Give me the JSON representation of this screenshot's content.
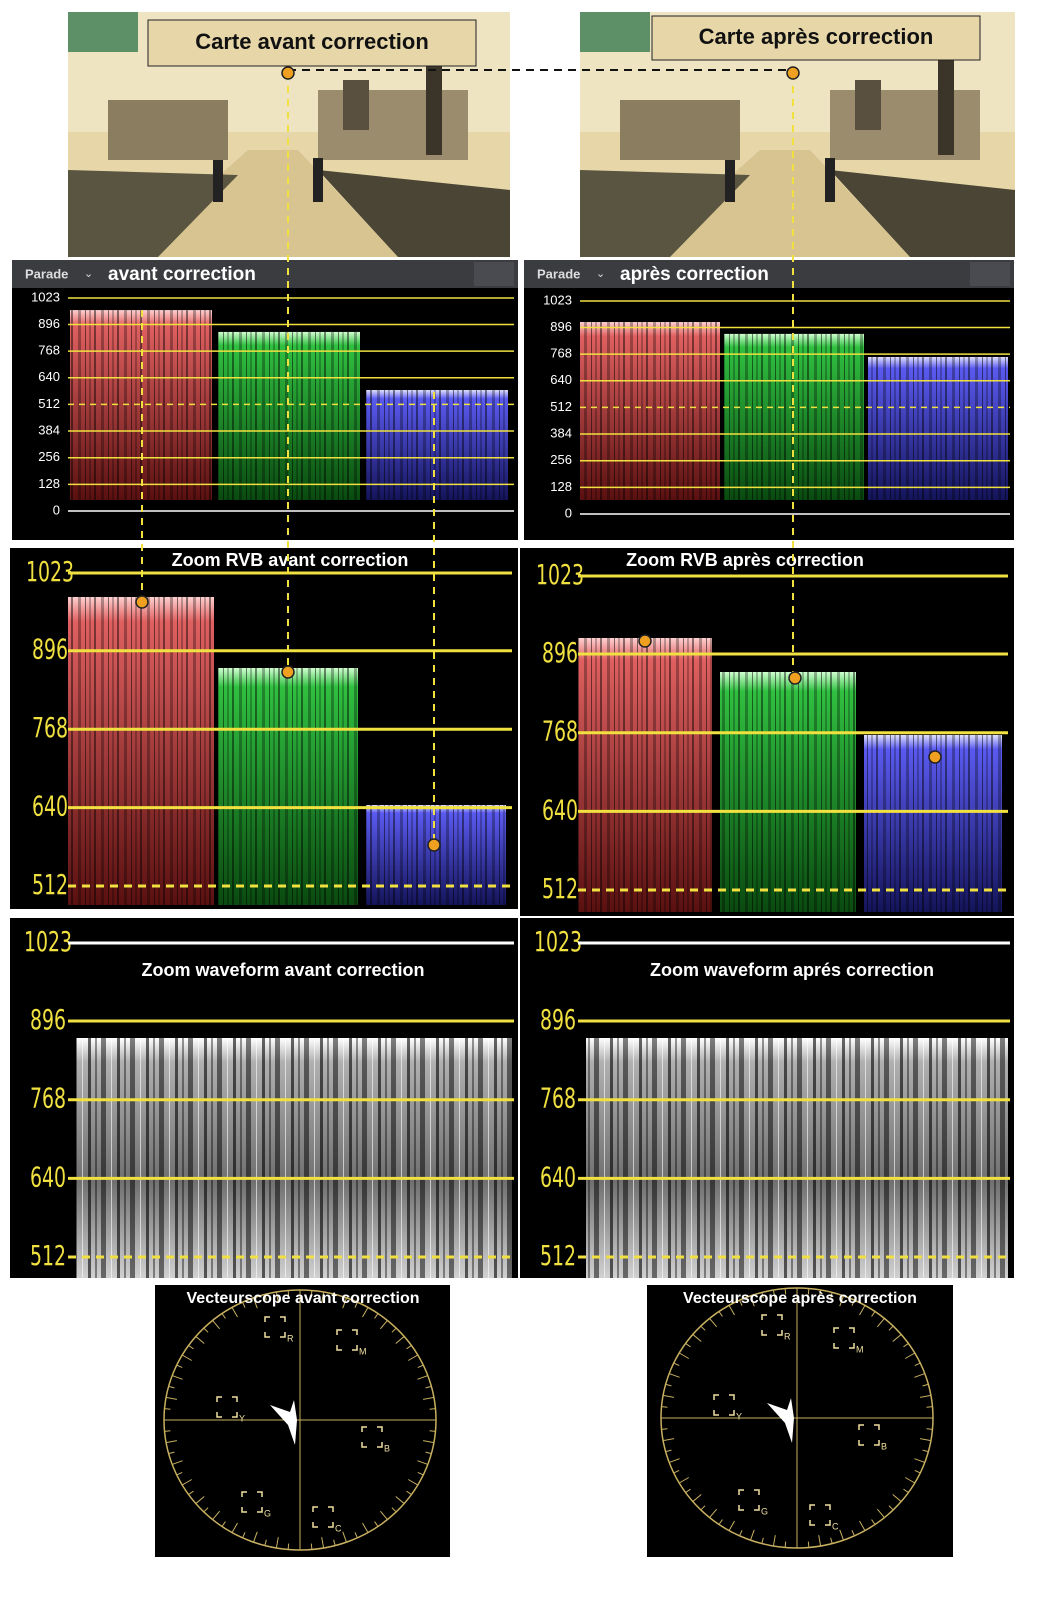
{
  "photos": [
    {
      "title": "Carte avant correction"
    },
    {
      "title": "Carte après correction"
    }
  ],
  "parade": [
    {
      "menu": "Parade",
      "title": "avant correction"
    },
    {
      "menu": "Parade",
      "title": "après correction"
    }
  ],
  "parade_ticks": [
    1023,
    896,
    768,
    640,
    512,
    384,
    256,
    128,
    0
  ],
  "zoom_rgb": [
    {
      "title": "Zoom RVB avant correction"
    },
    {
      "title": "Zoom RVB après correction"
    }
  ],
  "zoom_ticks": [
    1023,
    896,
    768,
    640,
    512
  ],
  "waveform": [
    {
      "title": "Zoom waveform avant correction"
    },
    {
      "title": "Zoom waveform aprés correction"
    }
  ],
  "vectorscope": [
    {
      "title": "Vecteurscope avant correction"
    },
    {
      "title": "Vecteurscope après correction"
    }
  ],
  "vector_targets": [
    "R",
    "M",
    "Y",
    "B",
    "G",
    "C"
  ]
}
